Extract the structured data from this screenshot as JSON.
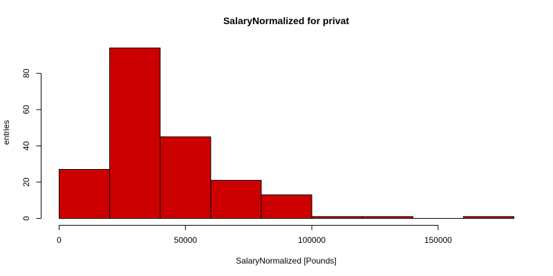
{
  "chart_data": {
    "type": "bar",
    "subtype": "histogram",
    "title": "SalaryNormalized for privat",
    "xlabel": "SalaryNormalized [Pounds]",
    "ylabel": "entries",
    "bins": [
      {
        "start": 0,
        "end": 20000,
        "count": 27
      },
      {
        "start": 20000,
        "end": 40000,
        "count": 94
      },
      {
        "start": 40000,
        "end": 60000,
        "count": 45
      },
      {
        "start": 60000,
        "end": 80000,
        "count": 21
      },
      {
        "start": 80000,
        "end": 100000,
        "count": 13
      },
      {
        "start": 100000,
        "end": 120000,
        "count": 1
      },
      {
        "start": 120000,
        "end": 140000,
        "count": 1
      },
      {
        "start": 140000,
        "end": 160000,
        "count": 0
      },
      {
        "start": 160000,
        "end": 180000,
        "count": 1
      }
    ],
    "xlim": [
      0,
      180000
    ],
    "ylim": [
      0,
      94
    ],
    "x_ticks": [
      0,
      50000,
      100000,
      150000
    ],
    "x_tick_labels": [
      "0",
      "50000",
      "100000",
      "150000"
    ],
    "y_ticks": [
      0,
      20,
      40,
      60,
      80
    ],
    "y_tick_labels": [
      "0",
      "20",
      "40",
      "60",
      "80"
    ],
    "bar_color": "#cc0000",
    "grid": false,
    "legend": "none"
  }
}
